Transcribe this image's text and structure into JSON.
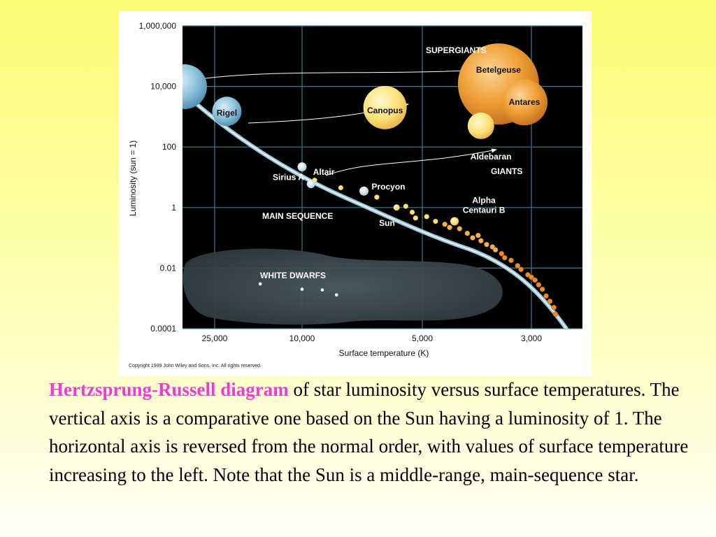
{
  "chart_data": {
    "type": "scatter",
    "title": "",
    "xlabel": "Surface temperature (K)",
    "ylabel": "Luminosity (sun = 1)",
    "x_scale": "log-reversed",
    "y_scale": "log",
    "x_ticks": [
      {
        "value": 25000,
        "label": "25,000"
      },
      {
        "value": 10000,
        "label": "10,000"
      },
      {
        "value": 5000,
        "label": "5,000"
      },
      {
        "value": 3000,
        "label": "3,000"
      }
    ],
    "y_ticks": [
      {
        "value": 1000000,
        "label": "1,000,000"
      },
      {
        "value": 10000,
        "label": "10,000"
      },
      {
        "value": 100,
        "label": "100"
      },
      {
        "value": 1,
        "label": "1"
      },
      {
        "value": 0.01,
        "label": "0.01"
      },
      {
        "value": 0.0001,
        "label": "0.0001"
      }
    ],
    "xlim": [
      40000,
      2500
    ],
    "ylim": [
      0.0001,
      1000000
    ],
    "grid": true,
    "regions": [
      "SUPERGIANTS",
      "GIANTS",
      "MAIN SEQUENCE",
      "WHITE DWARFS"
    ],
    "named_stars": [
      {
        "name": "Betelgeuse",
        "temperature": 3500,
        "luminosity": 12000
      },
      {
        "name": "Antares",
        "temperature": 3100,
        "luminosity": 3000
      },
      {
        "name": "Canopus",
        "temperature": 6200,
        "luminosity": 2000
      },
      {
        "name": "Rigel",
        "temperature": 22000,
        "luminosity": 1500
      },
      {
        "name": "Aldebaran",
        "temperature": 3800,
        "luminosity": 500
      },
      {
        "name": "Altair",
        "temperature": 9500,
        "luminosity": 6
      },
      {
        "name": "Sirius A",
        "temperature": 10000,
        "luminosity": 22
      },
      {
        "name": "Procyon",
        "temperature": 7000,
        "luminosity": 3.5
      },
      {
        "name": "Sun",
        "temperature": 5800,
        "luminosity": 1
      },
      {
        "name": "Alpha Centauri B",
        "temperature": 4300,
        "luminosity": 0.35
      }
    ],
    "white_dwarfs": [
      {
        "temperature": 33000,
        "luminosity": 0.008
      },
      {
        "temperature": 15500,
        "luminosity": 0.003
      },
      {
        "temperature": 10000,
        "luminosity": 0.002
      },
      {
        "temperature": 8900,
        "luminosity": 0.0019
      },
      {
        "temperature": 8200,
        "luminosity": 0.0013
      }
    ],
    "main_sequence_stars": [
      {
        "temperature": 5500,
        "luminosity": 1.1
      },
      {
        "temperature": 5300,
        "luminosity": 0.7
      },
      {
        "temperature": 5200,
        "luminosity": 0.45
      },
      {
        "temperature": 4900,
        "luminosity": 0.5
      },
      {
        "temperature": 4700,
        "luminosity": 0.35
      },
      {
        "temperature": 4500,
        "luminosity": 0.28
      },
      {
        "temperature": 4400,
        "luminosity": 0.22
      },
      {
        "temperature": 4200,
        "luminosity": 0.2
      },
      {
        "temperature": 4050,
        "luminosity": 0.14
      },
      {
        "temperature": 3950,
        "luminosity": 0.1
      },
      {
        "temperature": 3850,
        "luminosity": 0.12
      },
      {
        "temperature": 3800,
        "luminosity": 0.08
      },
      {
        "temperature": 3700,
        "luminosity": 0.06
      },
      {
        "temperature": 3600,
        "luminosity": 0.05
      },
      {
        "temperature": 3550,
        "luminosity": 0.04
      },
      {
        "temperature": 3450,
        "luminosity": 0.03
      },
      {
        "temperature": 3400,
        "luminosity": 0.022
      },
      {
        "temperature": 3300,
        "luminosity": 0.018
      },
      {
        "temperature": 3200,
        "luminosity": 0.012
      },
      {
        "temperature": 3150,
        "luminosity": 0.009
      },
      {
        "temperature": 3050,
        "luminosity": 0.006
      },
      {
        "temperature": 3000,
        "luminosity": 0.005
      },
      {
        "temperature": 2950,
        "luminosity": 0.004
      },
      {
        "temperature": 2900,
        "luminosity": 0.0028
      },
      {
        "temperature": 2850,
        "luminosity": 0.002
      },
      {
        "temperature": 2800,
        "luminosity": 0.0012
      },
      {
        "temperature": 2750,
        "luminosity": 0.0008
      },
      {
        "temperature": 2700,
        "luminosity": 0.0005
      },
      {
        "temperature": 2680,
        "luminosity": 0.0003
      },
      {
        "temperature": 6500,
        "luminosity": 2.2
      },
      {
        "temperature": 8000,
        "luminosity": 4.5
      },
      {
        "temperature": 9300,
        "luminosity": 8
      }
    ],
    "copyright": "Copyright 1999 John Wiley and Sons, Inc. All rights reserved."
  },
  "caption": {
    "title": "Hertzsprung-Russell diagram",
    "body": " of star luminosity versus surface temperatures. The vertical axis is a comparative one based on the Sun having a luminosity of 1. The horizontal axis is reversed from the normal order, with values of surface temperature increasing to the left. Note that the Sun is a middle-range, main-sequence star."
  },
  "colors": {
    "plot_background": "#000000",
    "grid": "#3d7f93",
    "main_sequence_band": "#a8d8ef",
    "white_dwarf_region": "#3b4a50",
    "blue_star": "#8fc3dc",
    "yellow_star": "#fce27a",
    "orange_star": "#ec9a2c",
    "caption_title": "#ee3bd6"
  }
}
